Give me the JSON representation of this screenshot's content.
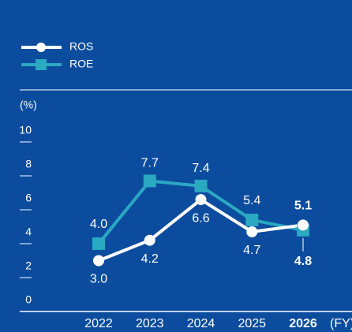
{
  "chart_data": {
    "type": "line",
    "categories": [
      "2022",
      "2023",
      "2024",
      "2025",
      "2026"
    ],
    "highlight_category": "2026",
    "x_label": "(FY)",
    "y_label": "(%)",
    "series": [
      {
        "name": "ROS",
        "color": "#ffffff",
        "marker": "circle",
        "values": [
          3.0,
          4.2,
          6.6,
          4.7,
          5.1
        ],
        "value_labels": [
          "3.0",
          "4.2",
          "6.6",
          "4.7",
          "5.1"
        ]
      },
      {
        "name": "ROE",
        "color": "#2ba8c2",
        "marker": "square",
        "values": [
          4.0,
          7.7,
          7.4,
          5.4,
          4.8
        ],
        "value_labels": [
          "4.0",
          "7.7",
          "7.4",
          "5.4",
          "4.8"
        ]
      }
    ],
    "ylim": [
      0,
      10
    ],
    "yticks": [
      0,
      2,
      4,
      6,
      8,
      10
    ],
    "legend": "top-left"
  }
}
